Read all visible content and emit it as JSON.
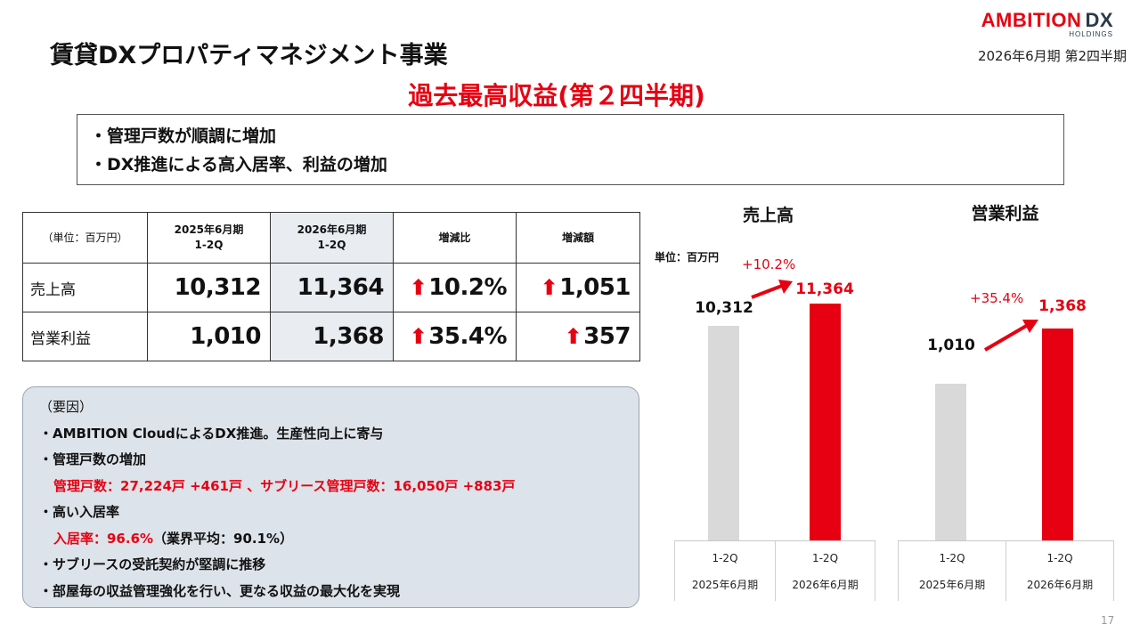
{
  "header": {
    "logo_main": "AMBITION",
    "logo_dx": "DX",
    "logo_sub": "HOLDINGS",
    "period": "2026年6月期 第2四半期",
    "title": "賃貸DXプロパティマネジメント事業",
    "headline": "過去最高収益(第２四半期)"
  },
  "highlights": [
    "・管理戸数が順調に増加",
    "・DX推進による高入居率、利益の増加"
  ],
  "table": {
    "unit": "（単位：百万円）",
    "col1_l1": "2025年6月期",
    "col1_l2": "1-2Q",
    "col2_l1": "2026年6月期",
    "col2_l2": "1-2Q",
    "col3": "増減比",
    "col4": "増減額",
    "rows": [
      {
        "label": "売上高",
        "prev": "10,312",
        "curr": "11,364",
        "ratio": "10.2%",
        "diff": "1,051"
      },
      {
        "label": "営業利益",
        "prev": "1,010",
        "curr": "1,368",
        "ratio": "35.4%",
        "diff": "357"
      }
    ]
  },
  "factors": {
    "title": "（要因）",
    "l1": "・AMBITION CloudによるDX推進。生産性向上に寄与",
    "l2": "・管理戸数の増加",
    "l3": "管理戸数：27,224戸 +461戸 、サブリース管理戸数：16,050戸 +883戸",
    "l4": "・高い入居率",
    "l5_red": "入居率：96.6%",
    "l5_rest": "（業界平均：90.1%）",
    "l6": "・サブリースの受託契約が堅調に推移",
    "l7": "・部屋毎の収益管理強化を行い、更なる収益の最大化を実現"
  },
  "charts": {
    "unit": "単位：百万円",
    "sales": {
      "title": "売上高",
      "prev_label": "10,312",
      "curr_label": "11,364",
      "pct": "+10.2%"
    },
    "op": {
      "title": "営業利益",
      "prev_label": "1,010",
      "curr_label": "1,368",
      "pct": "+35.4%"
    },
    "axis": {
      "q": "1-2Q",
      "prev_year": "2025年6月期",
      "curr_year": "2026年6月期"
    },
    "colors": {
      "prev": "#d9d9d9",
      "curr": "#e60012"
    }
  },
  "chart_data": [
    {
      "type": "bar",
      "title": "売上高",
      "categories": [
        "2025年6月期 1-2Q",
        "2026年6月期 1-2Q"
      ],
      "values": [
        10312,
        11364
      ],
      "ylabel": "単位：百万円"
    },
    {
      "type": "bar",
      "title": "営業利益",
      "categories": [
        "2025年6月期 1-2Q",
        "2026年6月期 1-2Q"
      ],
      "values": [
        1010,
        1368
      ]
    }
  ],
  "page_number": "17"
}
